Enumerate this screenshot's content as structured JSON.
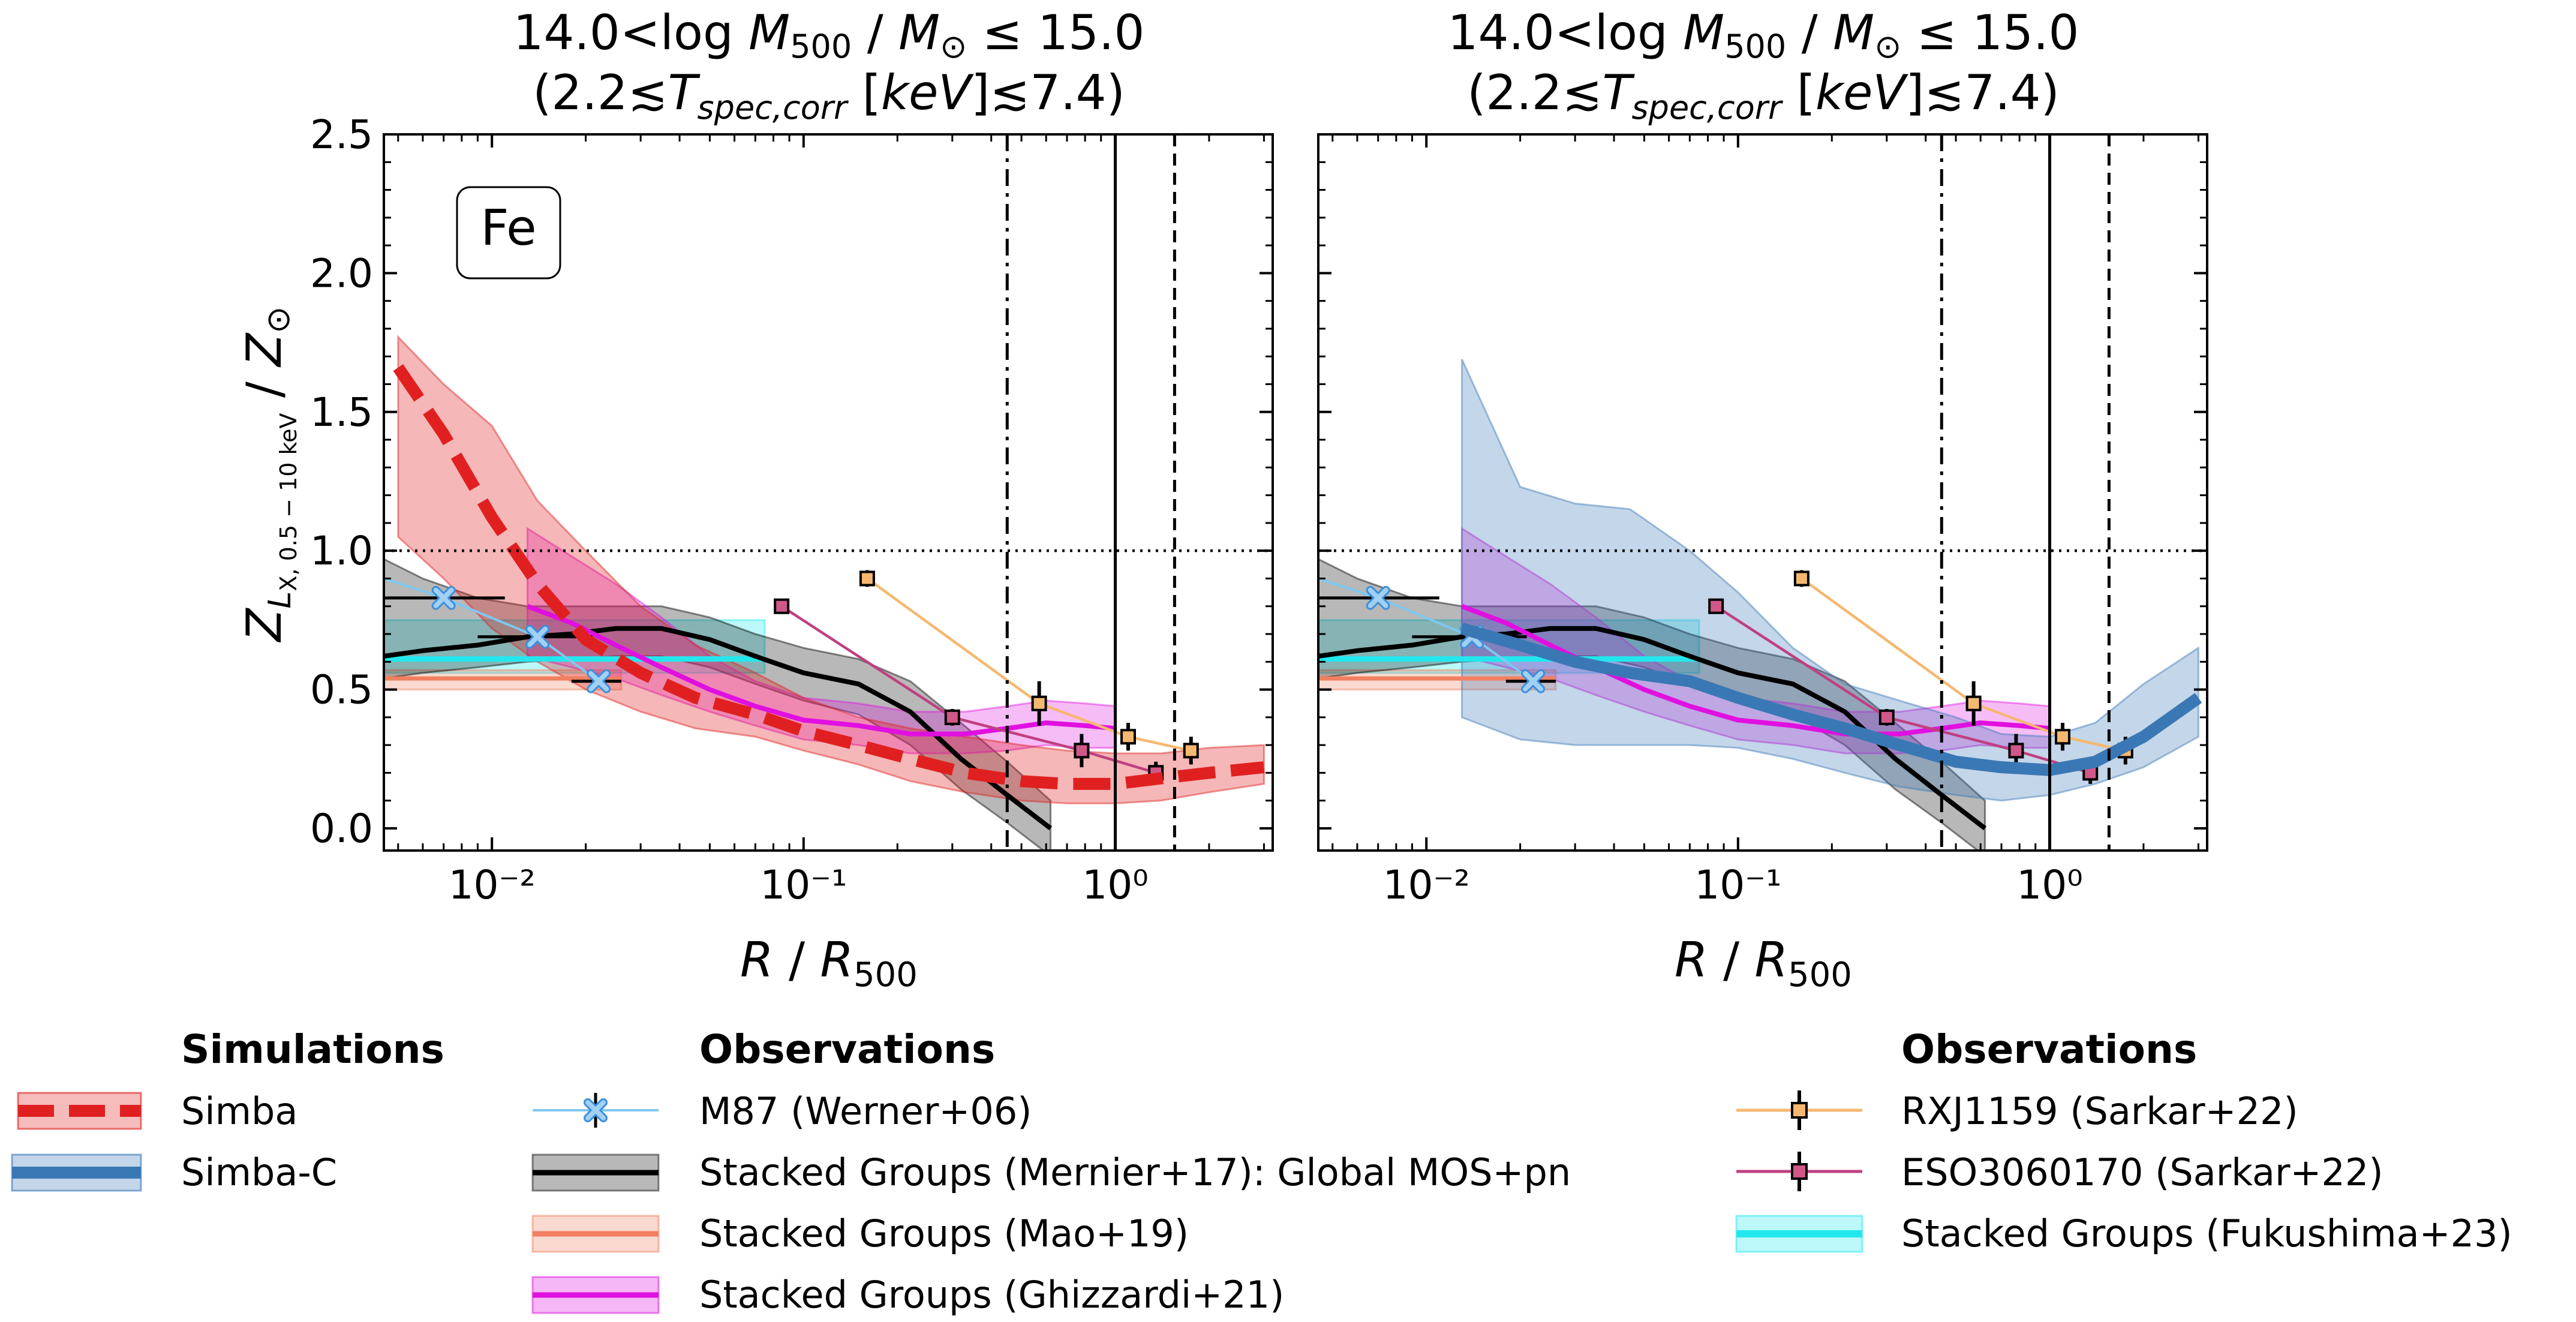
{
  "chart_data": [
    {
      "type": "line",
      "panel": "left",
      "title_line1": "14.0<log M500 / M⊙ ≤ 15.0",
      "title_line2": "(2.2≲T spec,corr [keV]≲7.4)",
      "element_label": "Fe",
      "xlabel": "R / R500",
      "ylabel": "Z_{L X,0.5−10keV} / Z⊙",
      "xscale": "log",
      "xlim": [
        0.0045,
        3.2
      ],
      "ylim": [
        -0.08,
        2.5
      ],
      "yticks": [
        "0.0",
        "0.5",
        "1.0",
        "1.5",
        "2.0",
        "2.5"
      ],
      "xticks": [
        "10⁻²",
        "10⁻¹",
        "10⁰"
      ],
      "reference_lines": {
        "z_solar": 1.0,
        "r_dashdot": 0.45,
        "r_solid": 1.0,
        "r_dashed": 1.55
      },
      "series": [
        {
          "name": "Simba",
          "key": "simba",
          "color": "#e02020",
          "x": [
            0.005,
            0.007,
            0.01,
            0.014,
            0.02,
            0.03,
            0.045,
            0.07,
            0.1,
            0.15,
            0.22,
            0.33,
            0.5,
            0.7,
            1.0,
            1.4,
            2.0,
            3.0
          ],
          "y": [
            1.66,
            1.42,
            1.12,
            0.88,
            0.68,
            0.56,
            0.47,
            0.41,
            0.35,
            0.3,
            0.25,
            0.2,
            0.17,
            0.16,
            0.16,
            0.18,
            0.2,
            0.22
          ],
          "lo": [
            1.05,
            0.9,
            0.72,
            0.6,
            0.5,
            0.42,
            0.36,
            0.33,
            0.28,
            0.23,
            0.17,
            0.13,
            0.1,
            0.09,
            0.09,
            0.1,
            0.13,
            0.16
          ],
          "hi": [
            1.77,
            1.6,
            1.45,
            1.18,
            1.0,
            0.8,
            0.66,
            0.56,
            0.47,
            0.4,
            0.36,
            0.33,
            0.3,
            0.28,
            0.27,
            0.27,
            0.29,
            0.3
          ]
        },
        {
          "name": "Stacked Groups (Mernier+17): Global MOS+pn",
          "key": "mernier",
          "color": "#000000",
          "x": [
            0.0045,
            0.006,
            0.009,
            0.013,
            0.018,
            0.025,
            0.035,
            0.05,
            0.07,
            0.1,
            0.15,
            0.22,
            0.32,
            0.45,
            0.62
          ],
          "y": [
            0.62,
            0.64,
            0.66,
            0.69,
            0.7,
            0.72,
            0.72,
            0.68,
            0.62,
            0.56,
            0.52,
            0.42,
            0.25,
            0.12,
            0.0
          ],
          "lo": [
            0.54,
            0.56,
            0.58,
            0.6,
            0.61,
            0.62,
            0.62,
            0.58,
            0.52,
            0.46,
            0.41,
            0.3,
            0.14,
            0.02,
            -0.1
          ],
          "hi": [
            0.97,
            0.9,
            0.83,
            0.8,
            0.8,
            0.8,
            0.8,
            0.76,
            0.7,
            0.65,
            0.61,
            0.53,
            0.38,
            0.24,
            0.1
          ]
        },
        {
          "name": "Stacked Groups (Ghizzardi+21)",
          "key": "ghizzardi",
          "color": "#e010e0",
          "x": [
            0.013,
            0.018,
            0.025,
            0.035,
            0.05,
            0.07,
            0.1,
            0.15,
            0.22,
            0.33,
            0.45,
            0.6,
            0.8,
            1.0
          ],
          "y": [
            0.8,
            0.74,
            0.66,
            0.58,
            0.5,
            0.44,
            0.39,
            0.37,
            0.34,
            0.34,
            0.36,
            0.38,
            0.37,
            0.36
          ],
          "lo": [
            0.62,
            0.58,
            0.54,
            0.48,
            0.42,
            0.37,
            0.32,
            0.3,
            0.27,
            0.27,
            0.28,
            0.3,
            0.29,
            0.29
          ],
          "hi": [
            1.08,
            0.98,
            0.88,
            0.76,
            0.62,
            0.53,
            0.47,
            0.45,
            0.42,
            0.42,
            0.44,
            0.46,
            0.45,
            0.44
          ]
        },
        {
          "name": "Stacked Groups (Mao+19)",
          "key": "mao",
          "color": "#f08060",
          "x": [
            0.0045,
            0.026
          ],
          "y": [
            0.54,
            0.54
          ],
          "lo": [
            0.5,
            0.5
          ],
          "hi": [
            0.57,
            0.57
          ]
        },
        {
          "name": "Stacked Groups (Fukushima+23)",
          "key": "fukushima",
          "color": "#22e8ee",
          "x": [
            0.0045,
            0.075
          ],
          "y": [
            0.61,
            0.61
          ],
          "lo": [
            0.56,
            0.56
          ],
          "hi": [
            0.75,
            0.75
          ]
        }
      ],
      "points": [
        {
          "name": "M87 (Werner+06)",
          "key": "m87",
          "x": [
            0.007,
            0.014,
            0.022
          ],
          "y": [
            0.83,
            0.69,
            0.53
          ],
          "xerr_lo": [
            0.0045,
            0.009,
            0.018
          ],
          "xerr_hi": [
            0.011,
            0.021,
            0.026
          ],
          "line_from": [
            0.0045,
            0.9
          ]
        },
        {
          "name": "RXJ1159 (Sarkar+22)",
          "key": "rxj",
          "x": [
            0.16,
            0.57,
            1.1,
            1.75
          ],
          "y": [
            0.9,
            0.45,
            0.33,
            0.28
          ],
          "yerr": [
            0.03,
            0.08,
            0.05,
            0.05
          ]
        },
        {
          "name": "ESO3060170 (Sarkar+22)",
          "key": "eso",
          "x": [
            0.085,
            0.3,
            0.78,
            1.35
          ],
          "y": [
            0.8,
            0.4,
            0.28,
            0.2
          ],
          "yerr": [
            0.02,
            0.03,
            0.06,
            0.04
          ]
        }
      ]
    },
    {
      "type": "line",
      "panel": "right",
      "title_line1": "14.0<log M500 / M⊙ ≤ 15.0",
      "title_line2": "(2.2≲T spec,corr [keV]≲7.4)",
      "xlabel": "R / R500",
      "xscale": "log",
      "xlim": [
        0.0045,
        3.2
      ],
      "ylim": [
        -0.08,
        2.5
      ],
      "xticks": [
        "10⁻²",
        "10⁻¹",
        "10⁰"
      ],
      "series": [
        {
          "name": "Simba-C",
          "key": "simbac",
          "color": "#3a78b5",
          "x": [
            0.013,
            0.02,
            0.03,
            0.045,
            0.07,
            0.1,
            0.15,
            0.22,
            0.33,
            0.5,
            0.7,
            1.0,
            1.4,
            2.0,
            3.0
          ],
          "y": [
            0.72,
            0.66,
            0.6,
            0.56,
            0.53,
            0.47,
            0.41,
            0.36,
            0.3,
            0.24,
            0.22,
            0.21,
            0.24,
            0.33,
            0.47
          ],
          "lo": [
            0.4,
            0.32,
            0.3,
            0.3,
            0.3,
            0.29,
            0.25,
            0.2,
            0.15,
            0.12,
            0.1,
            0.12,
            0.16,
            0.22,
            0.33
          ],
          "hi": [
            1.69,
            1.23,
            1.17,
            1.15,
            1.0,
            0.85,
            0.65,
            0.52,
            0.46,
            0.4,
            0.34,
            0.33,
            0.38,
            0.52,
            0.65
          ]
        }
      ]
    }
  ],
  "legend": {
    "col1_header": "Simulations",
    "col2_header": "Observations",
    "col3_header": "Observations",
    "simba": "Simba",
    "simbac": "Simba-C",
    "m87": "M87 (Werner+06)",
    "mernier": "Stacked Groups (Mernier+17): Global MOS+pn",
    "mao": "Stacked Groups (Mao+19)",
    "ghizzardi": "Stacked Groups (Ghizzardi+21)",
    "rxj": "RXJ1159 (Sarkar+22)",
    "eso": "ESO3060170 (Sarkar+22)",
    "fukushima": "Stacked Groups (Fukushima+23)"
  }
}
